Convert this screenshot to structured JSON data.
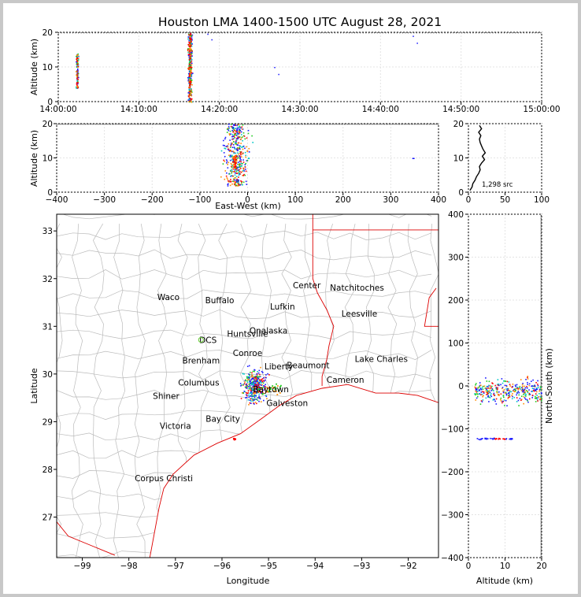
{
  "chart_data": {
    "type": "scatter",
    "title": "Houston LMA 1400-1500 UTC August 28, 2021",
    "panels": {
      "time_height": {
        "xlim": [
          "14:00:00",
          "15:00:00"
        ],
        "xticks": [
          "14:00:00",
          "14:10:00",
          "14:20:00",
          "14:30:00",
          "14:40:00",
          "14:50:00",
          "15:00:00"
        ],
        "ylim": [
          0,
          20
        ],
        "yticks": [
          "0",
          "10",
          "20"
        ],
        "ylabel": "Altitude (km)",
        "clusters": [
          {
            "t_min": 2.3,
            "alt_range": [
              4,
              14
            ]
          },
          {
            "t_min": 16.3,
            "alt_range": [
              0,
              20
            ]
          },
          {
            "t_min": 26.8,
            "alt_range": [
              10,
              10
            ]
          },
          {
            "t_min": 27.3,
            "alt_range": [
              8,
              8
            ]
          }
        ]
      },
      "ew_height": {
        "xlim": [
          -400,
          400
        ],
        "xticks": [
          "−400",
          "−300",
          "−200",
          "−100",
          "0",
          "100",
          "200",
          "300",
          "400"
        ],
        "ylim": [
          0,
          20
        ],
        "yticks": [
          "0",
          "10",
          "20"
        ],
        "xlabel": "East-West (km)",
        "ylabel": "Altitude (km)"
      },
      "histogram": {
        "xlim": [
          0,
          100
        ],
        "xticks": [
          "0",
          "50",
          "100"
        ],
        "ylim": [
          0,
          20
        ],
        "yticks": [
          "0",
          "10",
          "20"
        ],
        "annotation": "1,298 src",
        "profile": [
          [
            2,
            0.5
          ],
          [
            5,
            1.5
          ],
          [
            6,
            2.5
          ],
          [
            9,
            3.5
          ],
          [
            11,
            4.5
          ],
          [
            14,
            5.5
          ],
          [
            16,
            6.5
          ],
          [
            15,
            7.5
          ],
          [
            18,
            8.5
          ],
          [
            22,
            9.5
          ],
          [
            19,
            10.5
          ],
          [
            23,
            11.5
          ],
          [
            20,
            12.5
          ],
          [
            18,
            13.5
          ],
          [
            16,
            14.5
          ],
          [
            15,
            15.5
          ],
          [
            17,
            16.5
          ],
          [
            14,
            17.5
          ],
          [
            18,
            18.5
          ],
          [
            15,
            19.5
          ]
        ]
      },
      "map": {
        "xlim": [
          -99.55,
          -91.35
        ],
        "ylim": [
          26.15,
          33.35
        ],
        "xticks": [
          "−99",
          "−98",
          "−97",
          "−96",
          "−95",
          "−94",
          "−93",
          "−92"
        ],
        "yticks": [
          "27",
          "28",
          "29",
          "30",
          "31",
          "32",
          "33"
        ],
        "xlabel": "Longitude",
        "ylabel": "Latitude",
        "cities": [
          {
            "name": "Waco",
            "lon": -97.15,
            "lat": 31.55
          },
          {
            "name": "Buffalo",
            "lon": -96.05,
            "lat": 31.48
          },
          {
            "name": "Center",
            "lon": -94.18,
            "lat": 31.8
          },
          {
            "name": "Natchitoches",
            "lon": -93.1,
            "lat": 31.75
          },
          {
            "name": "Lufkin",
            "lon": -94.7,
            "lat": 31.35
          },
          {
            "name": "Leesville",
            "lon": -93.05,
            "lat": 31.2
          },
          {
            "name": "Onalaska",
            "lon": -95.0,
            "lat": 30.85
          },
          {
            "name": "Huntsville",
            "lon": -95.45,
            "lat": 30.78
          },
          {
            "name": "DCS",
            "lon": -96.3,
            "lat": 30.65
          },
          {
            "name": "Conroe",
            "lon": -95.45,
            "lat": 30.38
          },
          {
            "name": "Lake Charles",
            "lon": -92.58,
            "lat": 30.25
          },
          {
            "name": "Brenham",
            "lon": -96.45,
            "lat": 30.22
          },
          {
            "name": "Liberty",
            "lon": -94.78,
            "lat": 30.1
          },
          {
            "name": "Beaumont",
            "lon": -94.15,
            "lat": 30.12
          },
          {
            "name": "Cameron",
            "lon": -93.35,
            "lat": 29.82
          },
          {
            "name": "Columbus",
            "lon": -96.5,
            "lat": 29.76
          },
          {
            "name": "Shiner",
            "lon": -97.2,
            "lat": 29.48
          },
          {
            "name": "Baytown",
            "lon": -94.95,
            "lat": 29.62
          },
          {
            "name": "Galveston",
            "lon": -94.6,
            "lat": 29.33
          },
          {
            "name": "Victoria",
            "lon": -97.0,
            "lat": 28.85
          },
          {
            "name": "Bay City",
            "lon": -95.98,
            "lat": 29.0
          },
          {
            "name": "Corpus Christi",
            "lon": -97.25,
            "lat": 27.75
          }
        ]
      },
      "ns_height": {
        "xlim": [
          0,
          20
        ],
        "xticks": [
          "0",
          "10",
          "20"
        ],
        "ylim": [
          -400,
          400
        ],
        "yticks": [
          "−400",
          "−300",
          "−200",
          "−100",
          "0",
          "100",
          "200",
          "300",
          "400"
        ],
        "xlabel": "Altitude (km)",
        "ylabel": "North-South (km)"
      }
    },
    "colors": {
      "early": "#1a1aff",
      "mid": "#00c8c8",
      "midlate": "#22cc22",
      "late": "#ff8c00",
      "last": "#ff0000",
      "border": "#dd0000",
      "county": "#bbbbbb"
    }
  }
}
